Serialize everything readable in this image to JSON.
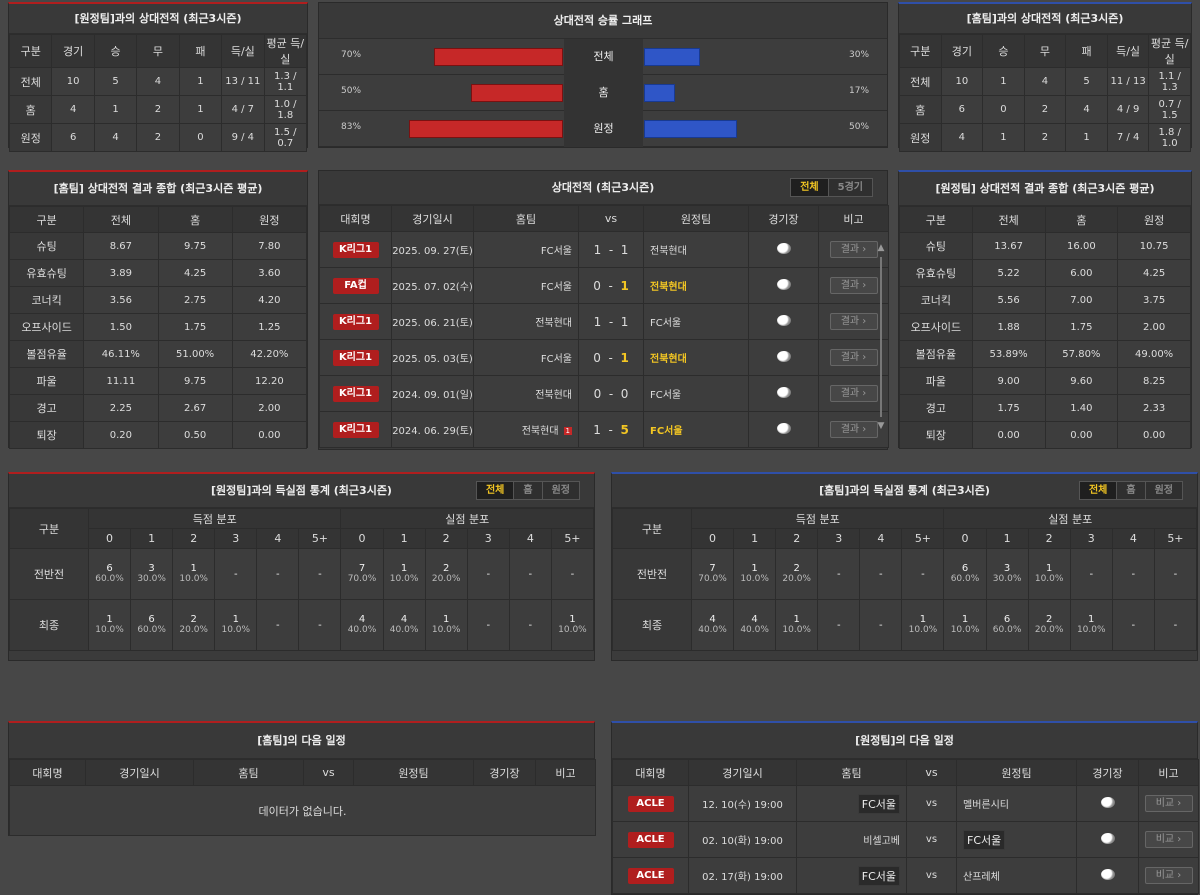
{
  "h2h_left": {
    "title": "[원정팀]과의 상대전적 (최근3시즌)",
    "cols": [
      "구분",
      "경기",
      "승",
      "무",
      "패",
      "득/실",
      "평균 득/실"
    ],
    "rows": [
      [
        "전체",
        "10",
        "5",
        "4",
        "1",
        "13 / 11",
        "1.3 / 1.1"
      ],
      [
        "홈",
        "4",
        "1",
        "2",
        "1",
        "4 / 7",
        "1.0 / 1.8"
      ],
      [
        "원정",
        "6",
        "4",
        "2",
        "0",
        "9 / 4",
        "1.5 / 0.7"
      ]
    ]
  },
  "h2h_right": {
    "title": "[홈팀]과의 상대전적 (최근3시즌)",
    "cols": [
      "구분",
      "경기",
      "승",
      "무",
      "패",
      "득/실",
      "평균 득/실"
    ],
    "rows": [
      [
        "전체",
        "10",
        "1",
        "4",
        "5",
        "11 / 13",
        "1.1 / 1.3"
      ],
      [
        "홈",
        "6",
        "0",
        "2",
        "4",
        "4 / 9",
        "0.7 / 1.5"
      ],
      [
        "원정",
        "4",
        "1",
        "2",
        "1",
        "7 / 4",
        "1.8 / 1.0"
      ]
    ]
  },
  "graph": {
    "title": "상대전적 승률 그래프",
    "rows": [
      {
        "label": "전체",
        "left": 70,
        "right": 30,
        "lt": "70%",
        "rt": "30%"
      },
      {
        "label": "홈",
        "left": 50,
        "right": 17,
        "lt": "50%",
        "rt": "17%"
      },
      {
        "label": "원정",
        "left": 83,
        "right": 50,
        "lt": "83%",
        "rt": "50%"
      }
    ]
  },
  "home_sum": {
    "title": "[홈팀] 상대전적 결과 종합 (최근3시즌 평균)",
    "cols": [
      "구분",
      "전체",
      "홈",
      "원정"
    ],
    "rows": [
      [
        "슈팅",
        "8.67",
        "9.75",
        "7.80"
      ],
      [
        "유효슈팅",
        "3.89",
        "4.25",
        "3.60"
      ],
      [
        "코너킥",
        "3.56",
        "2.75",
        "4.20"
      ],
      [
        "오프사이드",
        "1.50",
        "1.75",
        "1.25"
      ],
      [
        "볼점유율",
        "46.11%",
        "51.00%",
        "42.20%"
      ],
      [
        "파울",
        "11.11",
        "9.75",
        "12.20"
      ],
      [
        "경고",
        "2.25",
        "2.67",
        "2.00"
      ],
      [
        "퇴장",
        "0.20",
        "0.50",
        "0.00"
      ]
    ]
  },
  "away_sum": {
    "title": "[원정팀] 상대전적 결과 종합 (최근3시즌 평균)",
    "cols": [
      "구분",
      "전체",
      "홈",
      "원정"
    ],
    "rows": [
      [
        "슈팅",
        "13.67",
        "16.00",
        "10.75"
      ],
      [
        "유효슈팅",
        "5.22",
        "6.00",
        "4.25"
      ],
      [
        "코너킥",
        "5.56",
        "7.00",
        "3.75"
      ],
      [
        "오프사이드",
        "1.88",
        "1.75",
        "2.00"
      ],
      [
        "볼점유율",
        "53.89%",
        "57.80%",
        "49.00%"
      ],
      [
        "파울",
        "9.00",
        "9.60",
        "8.25"
      ],
      [
        "경고",
        "1.75",
        "1.40",
        "2.33"
      ],
      [
        "퇴장",
        "0.00",
        "0.00",
        "0.00"
      ]
    ]
  },
  "matches": {
    "title": "상대전적 (최근3시즌)",
    "tabs": [
      "전체",
      "5경기"
    ],
    "cols": [
      "대회명",
      "경기일시",
      "홈팀",
      "vs",
      "원정팀",
      "경기장",
      "비고"
    ],
    "btn": "결과",
    "rows": [
      {
        "comp": "K리그1",
        "date": "2025. 09. 27(토)",
        "home": "FC서울",
        "hs": "1",
        "as": "1",
        "away": "전북현대",
        "win": ""
      },
      {
        "comp": "FA컵",
        "date": "2025. 07. 02(수)",
        "home": "FC서울",
        "hs": "0",
        "as": "1",
        "away": "전북현대",
        "win": "away"
      },
      {
        "comp": "K리그1",
        "date": "2025. 06. 21(토)",
        "home": "전북현대",
        "hs": "1",
        "as": "1",
        "away": "FC서울",
        "win": ""
      },
      {
        "comp": "K리그1",
        "date": "2025. 05. 03(토)",
        "home": "FC서울",
        "hs": "0",
        "as": "1",
        "away": "전북현대",
        "win": "away"
      },
      {
        "comp": "K리그1",
        "date": "2024. 09. 01(일)",
        "home": "전북현대",
        "hs": "0",
        "as": "0",
        "away": "FC서울",
        "win": ""
      },
      {
        "comp": "K리그1",
        "date": "2024. 06. 29(토)",
        "home": "전북현대",
        "hs": "1",
        "as": "5",
        "away": "FC서울",
        "win": "away",
        "card": "1"
      }
    ]
  },
  "goals_left": {
    "title": "[원정팀]과의 득실점 통계 (최근3시즌)",
    "tabs": [
      "전체",
      "홈",
      "원정"
    ],
    "g1": "득점 분포",
    "g2": "실점 분포",
    "rowhead": "구분",
    "buckets": [
      "0",
      "1",
      "2",
      "3",
      "4",
      "5+"
    ],
    "rows": [
      {
        "label": "전반전",
        "scored": [
          [
            "6",
            "60.0%"
          ],
          [
            "3",
            "30.0%"
          ],
          [
            "1",
            "10.0%"
          ],
          [
            "-",
            ""
          ],
          [
            "-",
            ""
          ],
          [
            "-",
            ""
          ]
        ],
        "conceded": [
          [
            "7",
            "70.0%"
          ],
          [
            "1",
            "10.0%"
          ],
          [
            "2",
            "20.0%"
          ],
          [
            "-",
            ""
          ],
          [
            "-",
            ""
          ],
          [
            "-",
            ""
          ]
        ]
      },
      {
        "label": "최종",
        "scored": [
          [
            "1",
            "10.0%"
          ],
          [
            "6",
            "60.0%"
          ],
          [
            "2",
            "20.0%"
          ],
          [
            "1",
            "10.0%"
          ],
          [
            "-",
            ""
          ],
          [
            "-",
            ""
          ]
        ],
        "conceded": [
          [
            "4",
            "40.0%"
          ],
          [
            "4",
            "40.0%"
          ],
          [
            "1",
            "10.0%"
          ],
          [
            "-",
            ""
          ],
          [
            "-",
            ""
          ],
          [
            "1",
            "10.0%"
          ]
        ]
      }
    ]
  },
  "goals_right": {
    "title": "[홈팀]과의 득실점 통계 (최근3시즌)",
    "tabs": [
      "전체",
      "홈",
      "원정"
    ],
    "g1": "득점 분포",
    "g2": "실점 분포",
    "rowhead": "구분",
    "buckets": [
      "0",
      "1",
      "2",
      "3",
      "4",
      "5+"
    ],
    "rows": [
      {
        "label": "전반전",
        "scored": [
          [
            "7",
            "70.0%"
          ],
          [
            "1",
            "10.0%"
          ],
          [
            "2",
            "20.0%"
          ],
          [
            "-",
            ""
          ],
          [
            "-",
            ""
          ],
          [
            "-",
            ""
          ]
        ],
        "conceded": [
          [
            "6",
            "60.0%"
          ],
          [
            "3",
            "30.0%"
          ],
          [
            "1",
            "10.0%"
          ],
          [
            "-",
            ""
          ],
          [
            "-",
            ""
          ],
          [
            "-",
            ""
          ]
        ]
      },
      {
        "label": "최종",
        "scored": [
          [
            "4",
            "40.0%"
          ],
          [
            "4",
            "40.0%"
          ],
          [
            "1",
            "10.0%"
          ],
          [
            "-",
            ""
          ],
          [
            "-",
            ""
          ],
          [
            "1",
            "10.0%"
          ]
        ],
        "conceded": [
          [
            "1",
            "10.0%"
          ],
          [
            "6",
            "60.0%"
          ],
          [
            "2",
            "20.0%"
          ],
          [
            "1",
            "10.0%"
          ],
          [
            "-",
            ""
          ],
          [
            "-",
            ""
          ]
        ]
      }
    ]
  },
  "next_home": {
    "title": "[홈팀]의 다음 일정",
    "cols": [
      "대회명",
      "경기일시",
      "홈팀",
      "vs",
      "원정팀",
      "경기장",
      "비고"
    ],
    "empty": "데이터가 없습니다."
  },
  "next_away": {
    "title": "[원정팀]의 다음 일정",
    "cols": [
      "대회명",
      "경기일시",
      "홈팀",
      "vs",
      "원정팀",
      "경기장",
      "비고"
    ],
    "btn": "비교",
    "vs": "vs",
    "rows": [
      {
        "comp": "ACLE",
        "date": "12. 10(수) 19:00",
        "home": "FC서울",
        "away": "멜버른시티",
        "tag": "home"
      },
      {
        "comp": "ACLE",
        "date": "02. 10(화) 19:00",
        "home": "비셀고베",
        "away": "FC서울",
        "tag": "away"
      },
      {
        "comp": "ACLE",
        "date": "02. 17(화) 19:00",
        "home": "FC서울",
        "away": "산프레체",
        "tag": "home"
      }
    ]
  },
  "colors": {
    "accent_red": "#b01e1e",
    "accent_blue": "#2f4fa8",
    "win": "#f3c623"
  }
}
